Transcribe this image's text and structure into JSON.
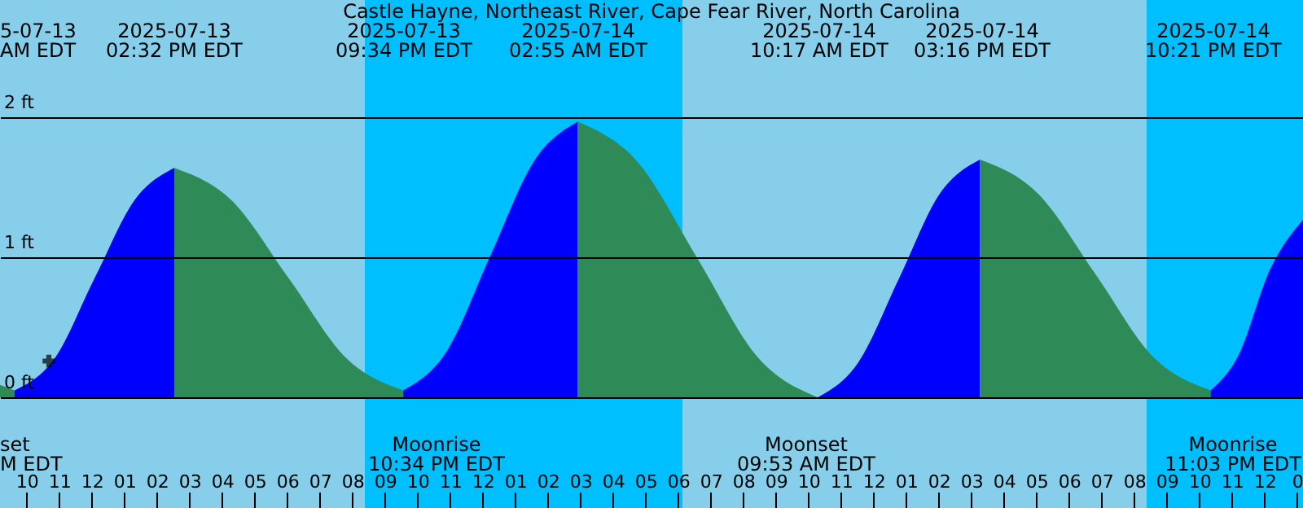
{
  "chart_data": {
    "type": "area",
    "title": "Castle Hayne, Northeast River, Cape Fear River, North Carolina",
    "xlim": [
      "2025-07-13T09:11",
      "2025-07-15T01:11"
    ],
    "ylim": [
      -0.79,
      2.84
    ],
    "xticks": [
      {
        "value": "2025-07-13T10:00",
        "label": "10"
      },
      {
        "value": "2025-07-13T11:00",
        "label": "11"
      },
      {
        "value": "2025-07-13T12:00",
        "label": "12"
      },
      {
        "value": "2025-07-13T13:00",
        "label": "01"
      },
      {
        "value": "2025-07-13T14:00",
        "label": "02"
      },
      {
        "value": "2025-07-13T15:00",
        "label": "03"
      },
      {
        "value": "2025-07-13T16:00",
        "label": "04"
      },
      {
        "value": "2025-07-13T17:00",
        "label": "05"
      },
      {
        "value": "2025-07-13T18:00",
        "label": "06"
      },
      {
        "value": "2025-07-13T19:00",
        "label": "07"
      },
      {
        "value": "2025-07-13T20:00",
        "label": "08"
      },
      {
        "value": "2025-07-13T21:00",
        "label": "09"
      },
      {
        "value": "2025-07-13T22:00",
        "label": "10"
      },
      {
        "value": "2025-07-13T23:00",
        "label": "11"
      },
      {
        "value": "2025-07-14T00:00",
        "label": "12"
      },
      {
        "value": "2025-07-14T01:00",
        "label": "01"
      },
      {
        "value": "2025-07-14T02:00",
        "label": "02"
      },
      {
        "value": "2025-07-14T03:00",
        "label": "03"
      },
      {
        "value": "2025-07-14T04:00",
        "label": "04"
      },
      {
        "value": "2025-07-14T05:00",
        "label": "05"
      },
      {
        "value": "2025-07-14T06:00",
        "label": "06"
      },
      {
        "value": "2025-07-14T07:00",
        "label": "07"
      },
      {
        "value": "2025-07-14T08:00",
        "label": "08"
      },
      {
        "value": "2025-07-14T09:00",
        "label": "09"
      },
      {
        "value": "2025-07-14T10:00",
        "label": "10"
      },
      {
        "value": "2025-07-14T11:00",
        "label": "11"
      },
      {
        "value": "2025-07-14T12:00",
        "label": "12"
      },
      {
        "value": "2025-07-14T13:00",
        "label": "01"
      },
      {
        "value": "2025-07-14T14:00",
        "label": "02"
      },
      {
        "value": "2025-07-14T15:00",
        "label": "03"
      },
      {
        "value": "2025-07-14T16:00",
        "label": "04"
      },
      {
        "value": "2025-07-14T17:00",
        "label": "05"
      },
      {
        "value": "2025-07-14T18:00",
        "label": "06"
      },
      {
        "value": "2025-07-14T19:00",
        "label": "07"
      },
      {
        "value": "2025-07-14T20:00",
        "label": "08"
      },
      {
        "value": "2025-07-14T21:00",
        "label": "09"
      },
      {
        "value": "2025-07-14T22:00",
        "label": "10"
      },
      {
        "value": "2025-07-14T23:00",
        "label": "11"
      },
      {
        "value": "2025-07-15T00:00",
        "label": "12"
      },
      {
        "value": "2025-07-15T01:00",
        "label": "0"
      }
    ],
    "yticks": [
      {
        "value": 0,
        "label": "0 ft"
      },
      {
        "value": 1,
        "label": "1 ft"
      },
      {
        "value": 2,
        "label": "2 ft"
      }
    ],
    "grid": "y",
    "bands": [
      {
        "axis": "x",
        "from": "2025-07-13T09:11",
        "to": "2025-07-13T20:23",
        "color": "#87ceeb"
      },
      {
        "axis": "x",
        "from": "2025-07-13T20:23",
        "to": "2025-07-14T06:08",
        "color": "#00bfff"
      },
      {
        "axis": "x",
        "from": "2025-07-14T06:08",
        "to": "2025-07-14T20:23",
        "color": "#87ceeb"
      },
      {
        "axis": "x",
        "from": "2025-07-14T20:23",
        "to": "2025-07-15T01:11",
        "color": "#00bfff"
      }
    ],
    "series": [
      {
        "color": "#2e8b57",
        "x": [
          "2025-07-13T09:11",
          "2025-07-13T09:38"
        ],
        "values": [
          0.09,
          0.05
        ]
      },
      {
        "color": "#0000ff",
        "x": [
          "2025-07-13T09:38",
          "2025-07-13T10:52",
          "2025-07-13T12:05",
          "2025-07-13T13:19",
          "2025-07-13T14:32"
        ],
        "values": [
          0.05,
          0.28,
          0.85,
          1.41,
          1.64
        ]
      },
      {
        "color": "#2e8b57",
        "x": [
          "2025-07-13T14:32",
          "2025-07-13T16:17",
          "2025-07-13T18:03",
          "2025-07-13T19:49",
          "2025-07-13T21:34"
        ],
        "values": [
          1.64,
          1.41,
          0.85,
          0.28,
          0.05
        ]
      },
      {
        "color": "#0000ff",
        "x": [
          "2025-07-13T21:34",
          "2025-07-13T22:54",
          "2025-07-14T00:14",
          "2025-07-14T01:35",
          "2025-07-14T02:55"
        ],
        "values": [
          0.05,
          0.33,
          1.01,
          1.69,
          1.97
        ]
      },
      {
        "color": "#2e8b57",
        "x": [
          "2025-07-14T02:55",
          "2025-07-14T04:46",
          "2025-07-14T06:36",
          "2025-07-14T08:26",
          "2025-07-14T10:17"
        ],
        "values": [
          1.97,
          1.68,
          0.99,
          0.29,
          0.0
        ]
      },
      {
        "color": "#0000ff",
        "x": [
          "2025-07-14T10:17",
          "2025-07-14T11:32",
          "2025-07-14T12:47",
          "2025-07-14T14:01",
          "2025-07-14T15:16"
        ],
        "values": [
          0.0,
          0.25,
          0.85,
          1.45,
          1.7
        ]
      },
      {
        "color": "#2e8b57",
        "x": [
          "2025-07-14T15:16",
          "2025-07-14T17:02",
          "2025-07-14T18:49",
          "2025-07-14T20:35",
          "2025-07-14T22:21"
        ],
        "values": [
          1.7,
          1.46,
          0.88,
          0.29,
          0.05
        ]
      },
      {
        "color": "#0000ff",
        "x": [
          "2025-07-14T22:21",
          "2025-07-14T23:12",
          "2025-07-15T00:11",
          "2025-07-15T01:11"
        ],
        "values": [
          0.05,
          0.3,
          0.92,
          1.27
        ]
      },
      {
        "type": "scatter",
        "marker": "cross",
        "color": "#000000",
        "x": [
          "2025-07-13T10:41"
        ],
        "values": [
          0.26
        ]
      }
    ],
    "annotations": [
      "5-07-13\nAM EDT",
      "2025-07-13\n02:32 PM EDT",
      "2025-07-13\n09:34 PM EDT",
      "2025-07-14\n02:55 AM EDT",
      "2025-07-14\n10:17 AM EDT",
      "2025-07-14\n03:16 PM EDT",
      "2025-07-14\n10:21 PM EDT",
      "set\nM EDT",
      "Moonrise\n10:34 PM EDT",
      "Moonset\n09:53 AM EDT",
      "Moonrise\n11:03 PM EDT"
    ]
  }
}
